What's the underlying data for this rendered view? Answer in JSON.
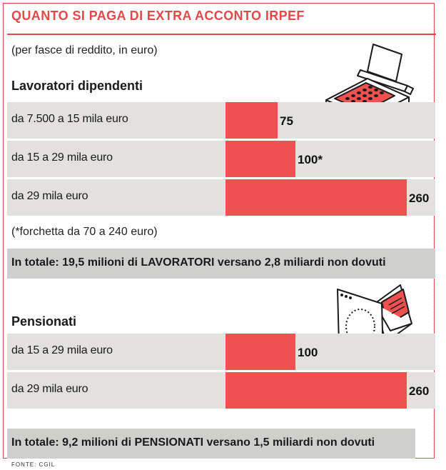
{
  "title": "QUANTO SI PAGA DI EXTRA ACCONTO IRPEF",
  "subtitle": "(per fasce di reddito, in euro)",
  "note": "(*forchetta da 70 a 240 euro)",
  "source": "FONTE: CGIL",
  "colors": {
    "accent": "#e8474a",
    "bar": "#ef5151",
    "row_bg": "#e3e1dd",
    "total_bg": "#cfd0cd"
  },
  "illustrations": {
    "top": "typewriter-icon",
    "bottom": "envelope-icon"
  },
  "chart_data": [
    {
      "type": "bar",
      "orientation": "horizontal",
      "title": "Lavoratori dipendenti",
      "categories": [
        "da 7.500 a 15 mila euro",
        "da 15 a 29 mila euro",
        "da 29 mila euro"
      ],
      "values": [
        75,
        100,
        260
      ],
      "value_labels": [
        "75",
        "100*",
        "260"
      ],
      "total": "In totale: 19,5 milioni di LAVORATORI versano 2,8 miliardi non dovuti"
    },
    {
      "type": "bar",
      "orientation": "horizontal",
      "title": "Pensionati",
      "categories": [
        "da 15 a 29 mila euro",
        "da 29 mila euro"
      ],
      "values": [
        100,
        260
      ],
      "value_labels": [
        "100",
        "260"
      ],
      "total": "In totale: 9,2 milioni di PENSIONATI versano 1,5 miliardi non dovuti"
    }
  ]
}
